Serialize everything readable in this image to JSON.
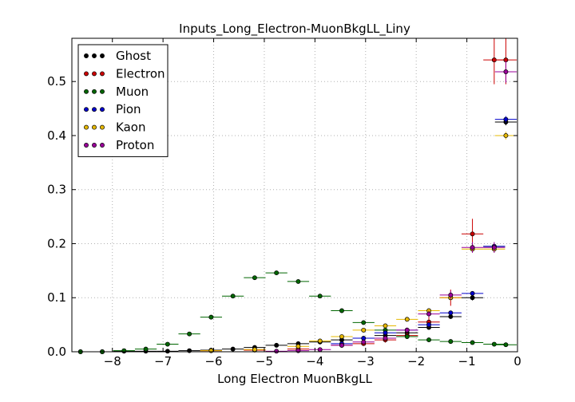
{
  "chart_data": {
    "type": "scatter",
    "title": "Inputs_Long_Electron-MuonBkgLL_Liny",
    "xlabel": "Long Electron MuonBkgLL",
    "ylabel": "",
    "xlim": [
      -8.8,
      0
    ],
    "ylim": [
      0,
      0.58
    ],
    "xticks": [
      -8,
      -7,
      -6,
      -5,
      -4,
      -3,
      -2,
      -1,
      0
    ],
    "yticks": [
      0.0,
      0.1,
      0.2,
      0.3,
      0.4,
      0.5
    ],
    "xtick_labels": [
      "−8",
      "−7",
      "−6",
      "−5",
      "−4",
      "−3",
      "−2",
      "−1",
      "0"
    ],
    "ytick_labels": [
      "0.0",
      "0.1",
      "0.2",
      "0.3",
      "0.4",
      "0.5"
    ],
    "grid": true,
    "legend_position": "top-left",
    "bin_halfwidth": 0.215,
    "series": [
      {
        "name": "Ghost",
        "color": "#000000",
        "x": [
          -8.63,
          -8.2,
          -7.77,
          -7.34,
          -6.91,
          -6.48,
          -6.05,
          -5.62,
          -5.19,
          -4.76,
          -4.33,
          -3.9,
          -3.47,
          -3.04,
          -2.61,
          -2.18,
          -1.75,
          -1.32,
          -0.89,
          -0.46,
          -0.23
        ],
        "y": [
          0.0,
          0.0,
          0.001,
          0.001,
          0.001,
          0.002,
          0.003,
          0.005,
          0.008,
          0.012,
          0.015,
          0.018,
          0.022,
          0.025,
          0.03,
          0.035,
          0.045,
          0.065,
          0.1,
          0.195,
          0.425
        ],
        "yerr": [
          0,
          0,
          0,
          0,
          0,
          0,
          0,
          0,
          0,
          0,
          0,
          0,
          0,
          0,
          0,
          0.002,
          0.003,
          0.004,
          0.005,
          0.005,
          0.006
        ]
      },
      {
        "name": "Electron",
        "color": "#cc0000",
        "x": [
          -6.05,
          -5.19,
          -4.33,
          -3.47,
          -3.04,
          -2.61,
          -2.18,
          -1.75,
          -1.32,
          -0.89,
          -0.46,
          -0.23
        ],
        "y": [
          0.002,
          0.003,
          0.005,
          0.012,
          0.015,
          0.022,
          0.03,
          0.055,
          0.1,
          0.218,
          0.54,
          0.54
        ],
        "yerr": [
          0.001,
          0.001,
          0.002,
          0.003,
          0.004,
          0.005,
          0.006,
          0.01,
          0.015,
          0.028,
          0.045,
          0.045
        ]
      },
      {
        "name": "Muon",
        "color": "#006600",
        "x": [
          -8.63,
          -8.2,
          -7.77,
          -7.34,
          -6.91,
          -6.48,
          -6.05,
          -5.62,
          -5.19,
          -4.76,
          -4.33,
          -3.9,
          -3.47,
          -3.04,
          -2.61,
          -2.18,
          -1.75,
          -1.32,
          -0.89,
          -0.46,
          -0.23
        ],
        "y": [
          0.0,
          0.0,
          0.002,
          0.005,
          0.014,
          0.033,
          0.064,
          0.103,
          0.137,
          0.146,
          0.13,
          0.103,
          0.076,
          0.054,
          0.04,
          0.028,
          0.022,
          0.019,
          0.017,
          0.014,
          0.013
        ],
        "yerr": [
          0,
          0,
          0,
          0,
          0.001,
          0.001,
          0.002,
          0.002,
          0.002,
          0.002,
          0.002,
          0.002,
          0.002,
          0.002,
          0.002,
          0.002,
          0.002,
          0.002,
          0.002,
          0.002,
          0.002
        ]
      },
      {
        "name": "Pion",
        "color": "#0000cc",
        "x": [
          -3.47,
          -3.04,
          -2.61,
          -2.18,
          -1.75,
          -1.32,
          -0.89,
          -0.46,
          -0.23
        ],
        "y": [
          0.015,
          0.025,
          0.035,
          0.04,
          0.05,
          0.072,
          0.108,
          0.195,
          0.43
        ],
        "yerr": [
          0.001,
          0.002,
          0.002,
          0.002,
          0.003,
          0.003,
          0.004,
          0.005,
          0.006
        ]
      },
      {
        "name": "Kaon",
        "color": "#e6b800",
        "x": [
          -6.05,
          -5.19,
          -4.33,
          -3.9,
          -3.47,
          -3.04,
          -2.61,
          -2.18,
          -1.75,
          -1.32,
          -0.89,
          -0.46,
          -0.23
        ],
        "y": [
          0.002,
          0.004,
          0.01,
          0.02,
          0.028,
          0.04,
          0.048,
          0.06,
          0.076,
          0.1,
          0.19,
          0.19,
          0.4
        ],
        "yerr": [
          0.001,
          0.001,
          0.002,
          0.002,
          0.003,
          0.003,
          0.003,
          0.004,
          0.004,
          0.005,
          0.006,
          0.006,
          0.007
        ]
      },
      {
        "name": "Proton",
        "color": "#990099",
        "x": [
          -4.76,
          -4.33,
          -3.9,
          -3.47,
          -3.04,
          -2.61,
          -2.18,
          -1.75,
          -1.32,
          -0.89,
          -0.46,
          -0.23
        ],
        "y": [
          0.001,
          0.002,
          0.004,
          0.012,
          0.018,
          0.025,
          0.04,
          0.07,
          0.105,
          0.193,
          0.193,
          0.518
        ],
        "yerr": [
          0.001,
          0.001,
          0.001,
          0.002,
          0.003,
          0.004,
          0.005,
          0.006,
          0.008,
          0.01,
          0.01,
          0.02
        ]
      }
    ]
  }
}
